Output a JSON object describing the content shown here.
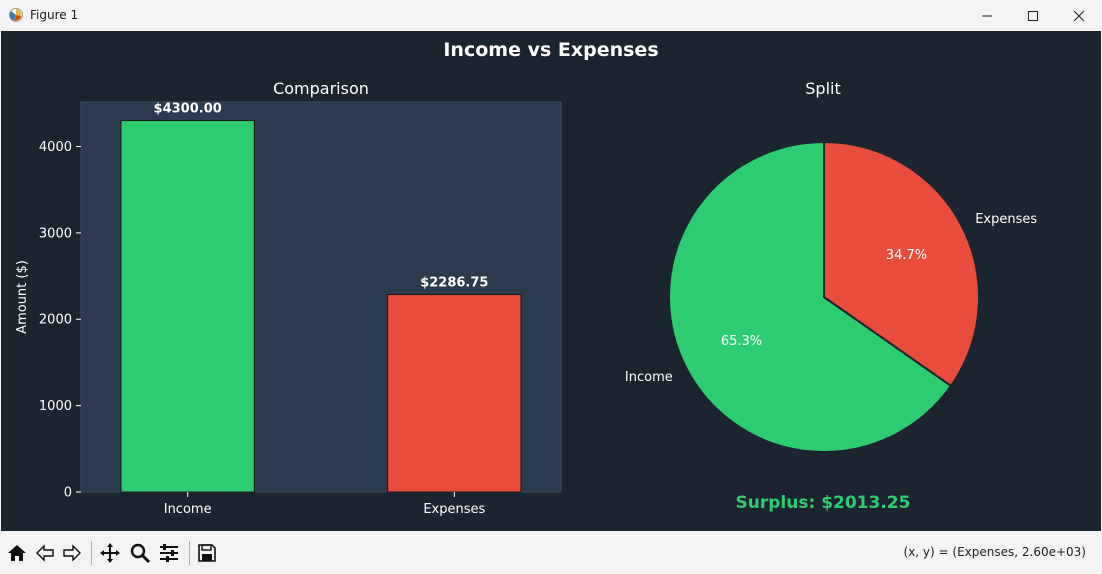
{
  "window": {
    "title": "Figure 1"
  },
  "figure": {
    "title": "Income vs Expenses",
    "background": "#1c2430"
  },
  "chart_data": [
    {
      "type": "bar",
      "title": "Comparison",
      "categories": [
        "Income",
        "Expenses"
      ],
      "values": [
        4300.0,
        2286.75
      ],
      "value_labels": [
        "$4300.00",
        "$2286.75"
      ],
      "colors": [
        "#2ecc71",
        "#e74c3c"
      ],
      "xlabel": "",
      "ylabel": "Amount ($)",
      "ylim": [
        0,
        4515
      ],
      "yticks": [
        0,
        1000,
        2000,
        3000,
        4000
      ],
      "ytick_labels": [
        "0",
        "1000",
        "2000",
        "3000",
        "4000"
      ],
      "axes_background": "#2c3a4d",
      "grid": false
    },
    {
      "type": "pie",
      "title": "Split",
      "labels": [
        "Income",
        "Expenses"
      ],
      "values": [
        4300.0,
        2286.75
      ],
      "percent_labels": [
        "65.3%",
        "34.7%"
      ],
      "colors": [
        "#2ecc71",
        "#e74c3c"
      ],
      "start_angle": 90,
      "annotation": "Surplus: $2013.25",
      "annotation_color": "#2ecc71"
    }
  ],
  "toolbar": {
    "tools": [
      "home-icon",
      "back-icon",
      "forward-icon",
      "pan-icon",
      "zoom-icon",
      "configure-icon",
      "save-icon"
    ],
    "coords_text": "(x, y) = (Expenses, 2.60e+03)"
  }
}
